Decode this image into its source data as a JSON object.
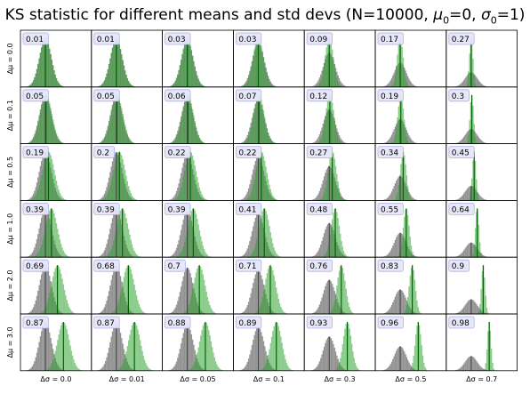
{
  "figure": {
    "title_prefix": "KS statistic for different means and std devs (N=10000, ",
    "mu_symbol": "μ",
    "mu_sub": "0",
    "mu_value": "=0, ",
    "sigma_symbol": "σ",
    "sigma_sub": "0",
    "sigma_value": "=1)"
  },
  "chart_data": {
    "type": "histogram-grid",
    "N": 10000,
    "mu0": 0,
    "sigma0": 1,
    "row_labels": [
      "Δμ = 0.0",
      "Δμ = 0.1",
      "Δμ = 0.5",
      "Δμ = 1.0",
      "Δμ = 2.0",
      "Δμ = 3.0"
    ],
    "col_labels": [
      "Δσ = 0.0",
      "Δσ = 0.01",
      "Δσ = 0.05",
      "Δσ = 0.1",
      "Δσ = 0.3",
      "Δσ = 0.5",
      "Δσ = 0.7"
    ],
    "delta_mu": [
      0.0,
      0.1,
      0.5,
      1.0,
      2.0,
      3.0
    ],
    "delta_sigma": [
      0.0,
      0.01,
      0.05,
      0.1,
      0.3,
      0.5,
      0.7
    ],
    "ks_values": [
      [
        "0.01",
        "0.01",
        "0.03",
        "0.03",
        "0.09",
        "0.17",
        "0.27"
      ],
      [
        "0.05",
        "0.05",
        "0.06",
        "0.07",
        "0.12",
        "0.19",
        "0.3"
      ],
      [
        "0.19",
        "0.2",
        "0.22",
        "0.22",
        "0.27",
        "0.34",
        "0.45"
      ],
      [
        "0.39",
        "0.39",
        "0.39",
        "0.41",
        "0.48",
        "0.55",
        "0.64"
      ],
      [
        "0.69",
        "0.68",
        "0.7",
        "0.71",
        "0.76",
        "0.83",
        "0.9"
      ],
      [
        "0.87",
        "0.87",
        "0.88",
        "0.89",
        "0.93",
        "0.96",
        "0.98"
      ]
    ],
    "colors": {
      "reference": "#7f7f7f",
      "shifted": "#2ca02c",
      "reference_line": "#404040",
      "shifted_line": "#006400",
      "label_box": "#e6e6fa",
      "label_box_edge": "#b0b0e8"
    }
  }
}
